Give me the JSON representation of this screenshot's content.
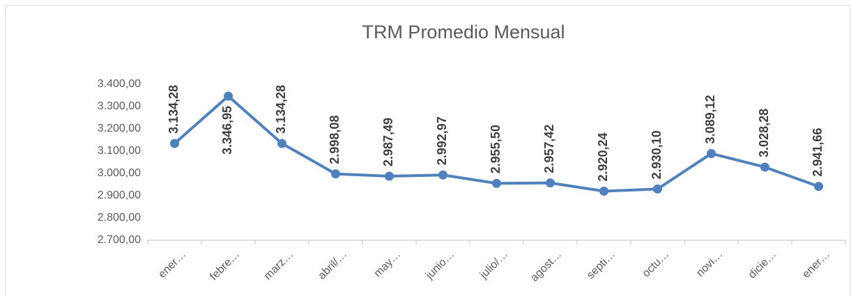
{
  "chart_data": {
    "type": "line",
    "title": "TRM Promedio Mensual",
    "categories": [
      "ener…",
      "febre…",
      "marz…",
      "abril/…",
      "may…",
      "junio…",
      "julio/…",
      "agost…",
      "septi…",
      "octu…",
      "novi…",
      "dicie…",
      "ener…"
    ],
    "series": [
      {
        "name": "TRM",
        "color": "#4f81bd",
        "values": [
          3134.28,
          3346.95,
          3134.28,
          2998.08,
          2987.49,
          2992.97,
          2955.5,
          2957.42,
          2920.24,
          2930.1,
          3089.12,
          3028.28,
          2941.66
        ],
        "value_labels": [
          "3.134,28",
          "3.346,95",
          "3.134,28",
          "2.998,08",
          "2.987,49",
          "2.992,97",
          "2.955,50",
          "2.957,42",
          "2.920,24",
          "2.930,10",
          "3.089,12",
          "3.028,28",
          "2.941,66"
        ]
      }
    ],
    "ylim": [
      2700,
      3400
    ],
    "yticks": [
      {
        "value": 2700,
        "label": "2.700,00"
      },
      {
        "value": 2800,
        "label": "2.800,00"
      },
      {
        "value": 2900,
        "label": "2.900,00"
      },
      {
        "value": 3000,
        "label": "3.000,00"
      },
      {
        "value": 3100,
        "label": "3.100,00"
      },
      {
        "value": 3200,
        "label": "3.200,00"
      },
      {
        "value": 3300,
        "label": "3.300,00"
      },
      {
        "value": 3400,
        "label": "3.400,00"
      }
    ],
    "grid": false
  }
}
